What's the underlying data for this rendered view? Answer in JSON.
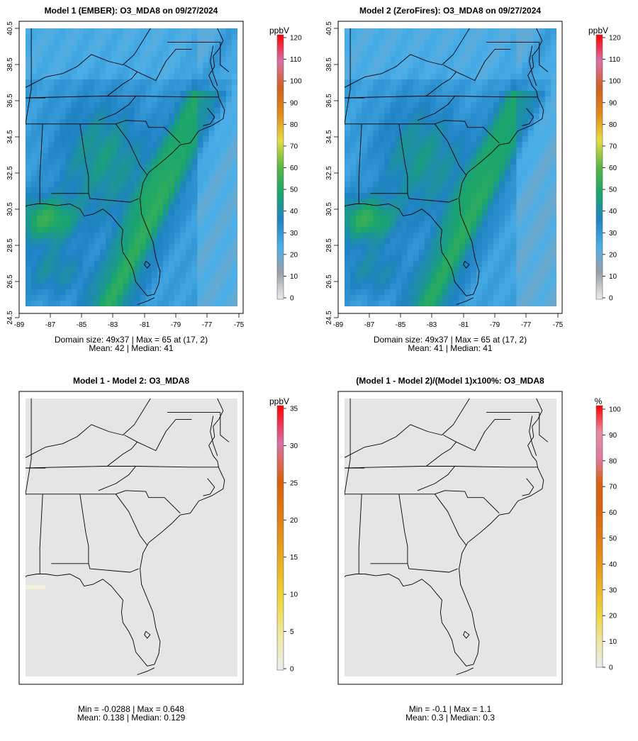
{
  "chart_data": [
    {
      "type": "heatmap",
      "title": "Model 1 (EMBER): O3_MDA8 on 09/27/2024",
      "x_ticks": [
        "-89",
        "-87",
        "-85",
        "-83",
        "-81",
        "-79",
        "-77",
        "-75"
      ],
      "y_ticks": [
        "24.5",
        "26.5",
        "28.5",
        "30.5",
        "32.5",
        "34.5",
        "36.5",
        "38.5",
        "40.5"
      ],
      "colorbar": {
        "unit": "ppbV",
        "min": 0,
        "max": 120,
        "ticks": [
          "0",
          "10",
          "20",
          "30",
          "40",
          "50",
          "60",
          "70",
          "80",
          "90",
          "100",
          "110",
          "120"
        ]
      },
      "note_line1": "Domain size: 49x37 | Max = 65 at (17, 2)",
      "note_line2": "Mean: 42 |  Median: 41",
      "stats": {
        "mean": 42,
        "median": 41,
        "max": 65
      }
    },
    {
      "type": "heatmap",
      "title": "Model 2 (ZeroFires): O3_MDA8 on 09/27/2024",
      "x_ticks": [
        "-89",
        "-87",
        "-85",
        "-83",
        "-81",
        "-79",
        "-77",
        "-75"
      ],
      "y_ticks": [
        "24.5",
        "26.5",
        "28.5",
        "30.5",
        "32.5",
        "34.5",
        "36.5",
        "38.5",
        "40.5"
      ],
      "colorbar": {
        "unit": "ppbV",
        "min": 0,
        "max": 120,
        "ticks": [
          "0",
          "10",
          "20",
          "30",
          "40",
          "50",
          "60",
          "70",
          "80",
          "90",
          "100",
          "110",
          "120"
        ]
      },
      "note_line1": "Domain size: 49x37 | Max = 65 at (17, 2)",
      "note_line2": "Mean: 41 |  Median: 41",
      "stats": {
        "mean": 41,
        "median": 41,
        "max": 65
      }
    },
    {
      "type": "heatmap",
      "title": "Model 1 - Model 2: O3_MDA8",
      "colorbar": {
        "unit": "ppbV",
        "min": 0,
        "max": 35,
        "ticks": [
          "0",
          "5",
          "10",
          "15",
          "20",
          "25",
          "30",
          "35"
        ]
      },
      "note_line1": "Min = -0.0288 | Max = 0.648",
      "note_line2": "Mean: 0.138 |  Median: 0.129",
      "stats": {
        "min": -0.0288,
        "max": 0.648,
        "mean": 0.138,
        "median": 0.129
      }
    },
    {
      "type": "heatmap",
      "title": "(Model 1 - Model 2)/(Model 1)x100%: O3_MDA8",
      "colorbar": {
        "unit": "%",
        "min": 0,
        "max": 100,
        "ticks": [
          "0",
          "10",
          "20",
          "30",
          "40",
          "50",
          "60",
          "70",
          "80",
          "90",
          "100"
        ]
      },
      "note_line1": "Min = -0.1 | Max = 1.1",
      "note_line2": "Mean: 0.3 |  Median: 0.3",
      "stats": {
        "min": -0.1,
        "max": 1.1,
        "mean": 0.3,
        "median": 0.3
      }
    }
  ],
  "colors": {
    "ppb_stops": [
      "#ececec",
      "#9aa0a6",
      "#4aaee8",
      "#1f82c4",
      "#1aa56e",
      "#56b840",
      "#e8dc44",
      "#e08a18",
      "#d0601e",
      "#d870a8",
      "#ff0000"
    ],
    "pct_stops": [
      "#ececec",
      "#eee4a0",
      "#eed63e",
      "#ecb428",
      "#e89418",
      "#e07a14",
      "#d86610",
      "#d8600c",
      "#e07aa0",
      "#e88aa0",
      "#ff0000"
    ],
    "diff_fill": "#e5e5e5"
  }
}
